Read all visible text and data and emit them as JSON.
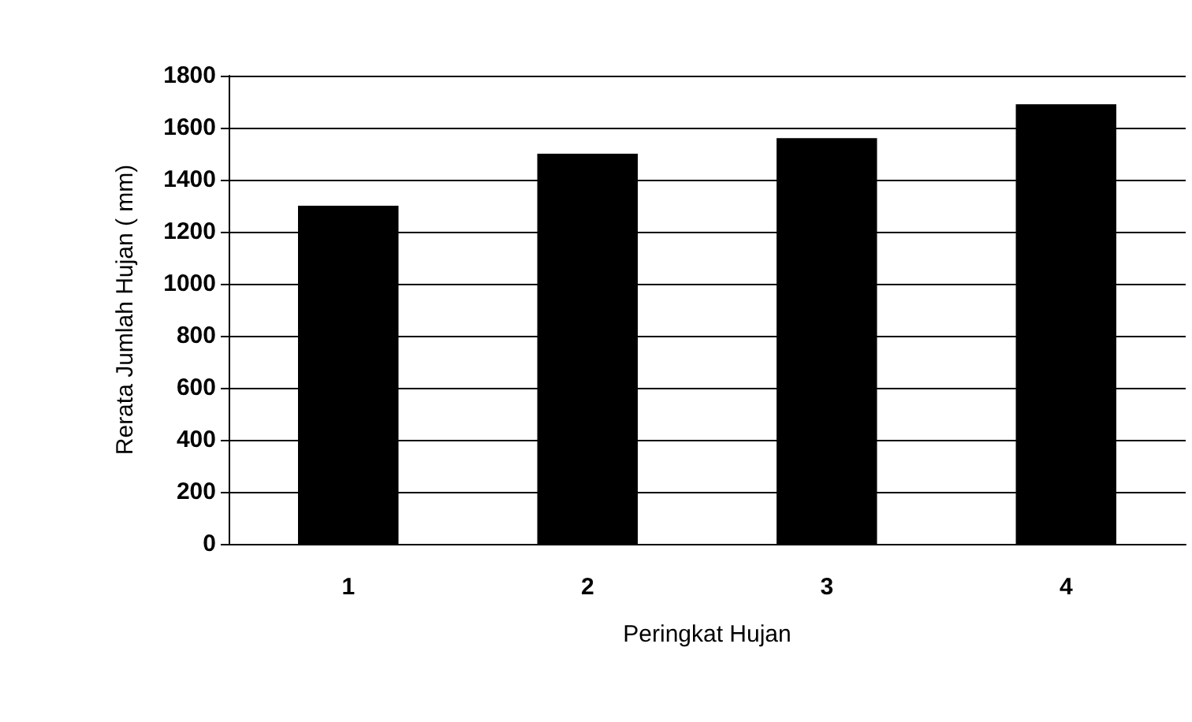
{
  "chart_data": {
    "type": "bar",
    "xlabel": "Peringkat Hujan",
    "ylabel": "Rerata Jumlah Hujan ( mm)",
    "categories": [
      "1",
      "2",
      "3",
      "4"
    ],
    "values": [
      1300,
      1500,
      1560,
      1690
    ],
    "color": "#000000",
    "ylim": [
      0,
      1800
    ],
    "yticks": [
      0,
      200,
      400,
      600,
      800,
      1000,
      1200,
      1400,
      1600,
      1800
    ],
    "grid": "y"
  }
}
